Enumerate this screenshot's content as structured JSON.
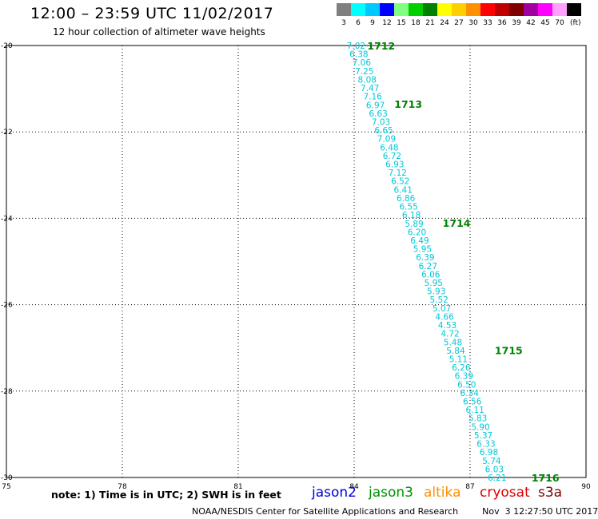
{
  "header": {
    "title": "12:00 – 23:59 UTC 11/02/2017",
    "subtitle": "12 hour collection of altimeter wave heights"
  },
  "legend": {
    "unit": "(ft)",
    "bins": [
      {
        "label": "3",
        "color": "#808080"
      },
      {
        "label": "6",
        "color": "#00ffff"
      },
      {
        "label": "9",
        "color": "#00c8ff"
      },
      {
        "label": "12",
        "color": "#0000ff"
      },
      {
        "label": "15",
        "color": "#80ff80"
      },
      {
        "label": "18",
        "color": "#00d000"
      },
      {
        "label": "21",
        "color": "#008000"
      },
      {
        "label": "24",
        "color": "#ffff00"
      },
      {
        "label": "27",
        "color": "#ffd000"
      },
      {
        "label": "30",
        "color": "#ff9000"
      },
      {
        "label": "33",
        "color": "#ff0000"
      },
      {
        "label": "36",
        "color": "#c00000"
      },
      {
        "label": "39",
        "color": "#800000"
      },
      {
        "label": "42",
        "color": "#a000a0"
      },
      {
        "label": "45",
        "color": "#ff00ff"
      },
      {
        "label": "70",
        "color": "#ffa0ff"
      },
      {
        "label": "",
        "color": "#000000"
      }
    ]
  },
  "note": "note: 1) Time is in UTC; 2) SWH is in feet",
  "satellites": [
    {
      "name": "jason2",
      "color": "#0000dd"
    },
    {
      "name": "jason3",
      "color": "#009000"
    },
    {
      "name": "altika",
      "color": "#ff9000"
    },
    {
      "name": "cryosat",
      "color": "#dd0000"
    },
    {
      "name": "s3a",
      "color": "#800000"
    }
  ],
  "footer": {
    "org": "NOAA/NESDIS Center for Satellite Applications and Research",
    "timestamp": "Nov  3 12:27:50 UTC 2017"
  },
  "chart_data": {
    "type": "scatter",
    "title": "12:00 – 23:59 UTC 11/02/2017",
    "subtitle": "12 hour collection of altimeter wave heights",
    "xlim": [
      75,
      90
    ],
    "ylim": [
      -30,
      -20
    ],
    "x_ticks": [
      {
        "value": 75,
        "label": "75"
      },
      {
        "value": 78,
        "label": "78"
      },
      {
        "value": 81,
        "label": "81"
      },
      {
        "value": 84,
        "label": "84"
      },
      {
        "value": 87,
        "label": "87"
      },
      {
        "value": 90,
        "label": "90"
      }
    ],
    "y_ticks": [
      {
        "value": -20,
        "label": "-20"
      },
      {
        "value": -22,
        "label": "-22"
      },
      {
        "value": -24,
        "label": "-24"
      },
      {
        "value": -26,
        "label": "-26"
      },
      {
        "value": -28,
        "label": "-28"
      },
      {
        "value": -30,
        "label": "-30"
      }
    ],
    "grid": true,
    "grid_style": "dotted",
    "track_color": "#00c8d8",
    "time_label_color": "#008000",
    "track_start": {
      "lon": 84.05,
      "lat": -20.0
    },
    "track_end": {
      "lon": 87.7,
      "lat": -30.0
    },
    "swh_values": [
      "7.02",
      "6.38",
      "7.06",
      "7.25",
      "8.08",
      "7.47",
      "7.16",
      "6.97",
      "6.63",
      "7.03",
      "6.65",
      "7.09",
      "6.48",
      "6.72",
      "6.93",
      "7.12",
      "6.52",
      "6.41",
      "6.86",
      "6.55",
      "6.18",
      "5.89",
      "6.20",
      "6.49",
      "5.95",
      "6.39",
      "6.27",
      "6.06",
      "5.95",
      "5.93",
      "5.52",
      "5.07",
      "4.66",
      "4.53",
      "4.72",
      "5.48",
      "5.84",
      "5.11",
      "6.26",
      "6.39",
      "6.50",
      "6.34",
      "6.56",
      "6.11",
      "5.83",
      "5.90",
      "5.37",
      "6.33",
      "6.98",
      "5.74",
      "6.03",
      "6.21"
    ],
    "time_labels": [
      {
        "label": "1712",
        "lon": 84.7,
        "lat": -20.0
      },
      {
        "label": "1713",
        "lon": 85.4,
        "lat": -21.35
      },
      {
        "label": "1714",
        "lon": 86.65,
        "lat": -24.1
      },
      {
        "label": "1715",
        "lon": 88.0,
        "lat": -27.05
      },
      {
        "label": "1716",
        "lon": 88.95,
        "lat": -30.0
      }
    ]
  }
}
